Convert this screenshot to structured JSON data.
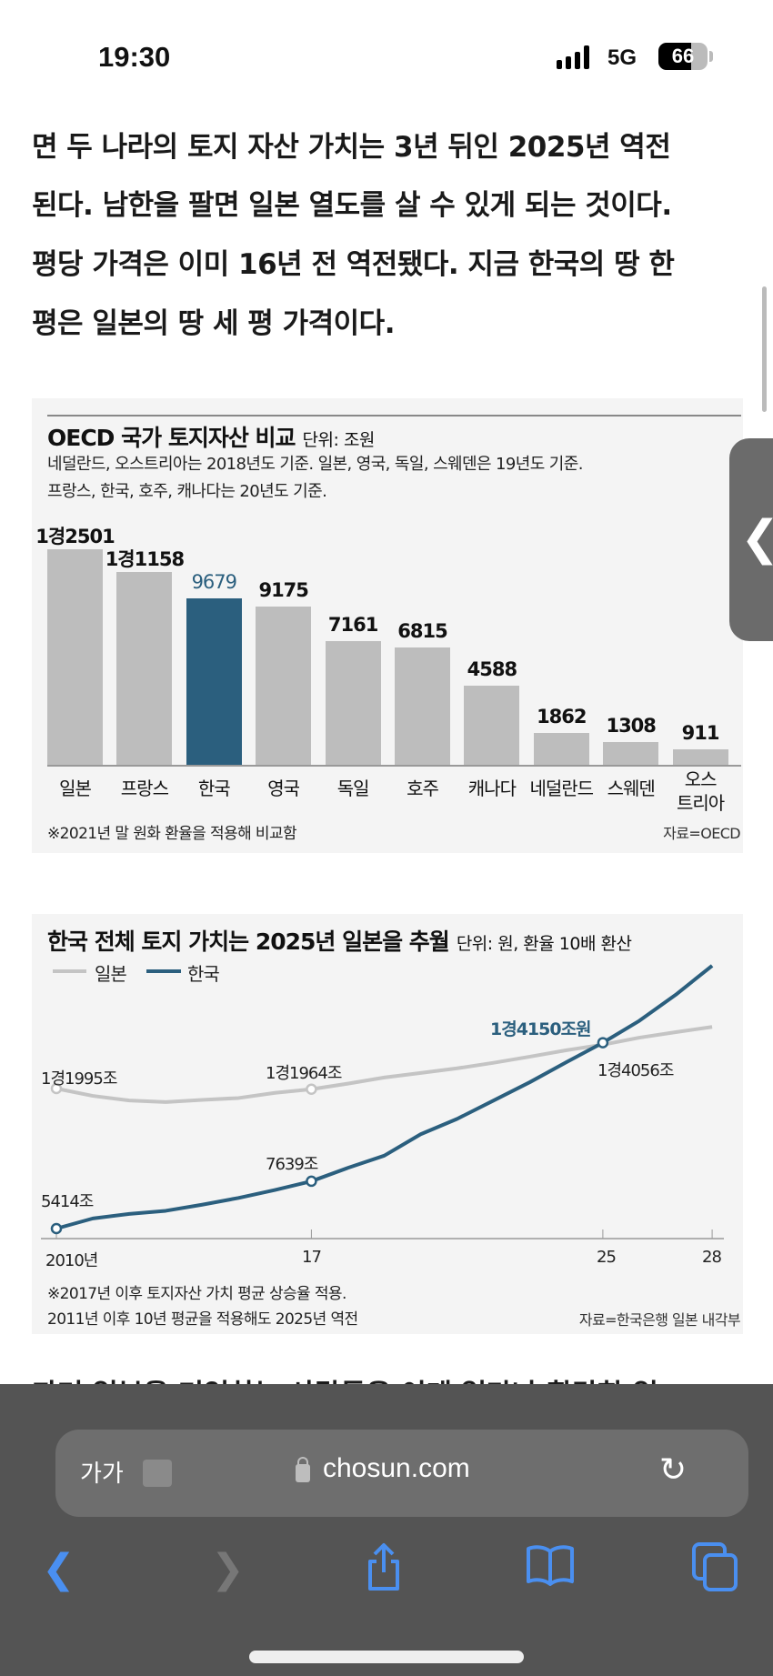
{
  "status_bar": {
    "time": "19:30",
    "network": "5G",
    "battery": "66",
    "battery_level": 0.66
  },
  "article": {
    "lines": [
      "면 두 나라의 토지 자산 가치는 3년 뒤인 2025년 역전",
      "된다. 남한을 팔면 일본 열도를 살 수 있게 되는 것이다.",
      "평당 가격은 이미 16년 전 역전됐다. 지금 한국의 땅 한",
      "평은 일본의 땅 세 평 가격이다."
    ],
    "next_line": "과거 일본을 기억하는 사람들은 이게 얼마나 황당한 일"
  },
  "chart_data": [
    {
      "type": "bar",
      "title": "OECD 국가 토지자산 비교",
      "unit": "단위: 조원",
      "subtitle_lines": [
        "네덜란드, 오스트리아는 2018년도 기준. 일본, 영국, 독일, 스웨덴은 19년도 기준.",
        "프랑스, 한국, 호주, 캐나다는 20년도 기준."
      ],
      "categories": [
        "일본",
        "프랑스",
        "한국",
        "영국",
        "독일",
        "호주",
        "캐나다",
        "네덜란드",
        "스웨덴",
        "오스\n트리아"
      ],
      "values": [
        12501,
        11158,
        9679,
        9175,
        7161,
        6815,
        4588,
        1862,
        1308,
        911
      ],
      "value_labels": [
        "1경2501",
        "1경1158",
        "9679",
        "9175",
        "7161",
        "6815",
        "4588",
        "1862",
        "1308",
        "911"
      ],
      "highlight": "한국",
      "colors": {
        "default": "#bdbdbd",
        "highlight": "#2b5f7e"
      },
      "footnote": "※2021년 말 원화 환율을 적용해 비교함",
      "source": "자료=OECD"
    },
    {
      "type": "line",
      "title": "한국 전체 토지 가치는 2025년 일본을 추월",
      "unit": "단위: 원, 환율 10배 환산",
      "x": [
        2010,
        2011,
        2012,
        2013,
        2014,
        2015,
        2016,
        2017,
        2018,
        2019,
        2020,
        2021,
        2022,
        2023,
        2024,
        2025,
        2026,
        2027,
        2028
      ],
      "x_tick_labels": [
        {
          "x": 2010,
          "label": "2010년"
        },
        {
          "x": 2017,
          "label": "17"
        },
        {
          "x": 2025,
          "label": "25"
        },
        {
          "x": 2028,
          "label": "28"
        }
      ],
      "series": [
        {
          "name": "일본",
          "color": "#c4c4c4",
          "values": [
            11995,
            11650,
            11433,
            11361,
            11462,
            11549,
            11793,
            11964,
            12225,
            12513,
            12729,
            12945,
            13205,
            13493,
            13795,
            14056,
            14385,
            14645,
            14890
          ]
        },
        {
          "name": "한국",
          "color": "#2b5f7e",
          "values": [
            5414,
            5889,
            6105,
            6249,
            6537,
            6854,
            7229,
            7639,
            8265,
            8841,
            9849,
            10569,
            11433,
            12297,
            13233,
            14150,
            15177,
            16401,
            17769
          ]
        }
      ],
      "annotations": {
        "japan_2010": "1경1995조",
        "japan_2017": "1경1964조",
        "japan_2025": "1경4056조",
        "korea_2010": "5414조",
        "korea_2017": "7639조",
        "korea_2025": "1경4150조원"
      },
      "footnotes": [
        "※2017년 이후 토지자산 가치 평균 상승율 적용.",
        "2011년 이후 10년 평균을 적용해도 2025년 역전"
      ],
      "source": "자료=한국은행 일본 내각부"
    }
  ],
  "browser": {
    "text_size": "가가",
    "url": "chosun.com"
  },
  "icons": {
    "side_tab": "chevron-left-icon",
    "reload": "reload-icon",
    "back": "back-icon",
    "forward": "forward-icon",
    "share": "share-icon",
    "bookmarks": "bookmarks-icon",
    "tabs": "tabs-icon"
  },
  "colors": {
    "accent": "#4a8ff0",
    "toolbar": "#545454"
  }
}
